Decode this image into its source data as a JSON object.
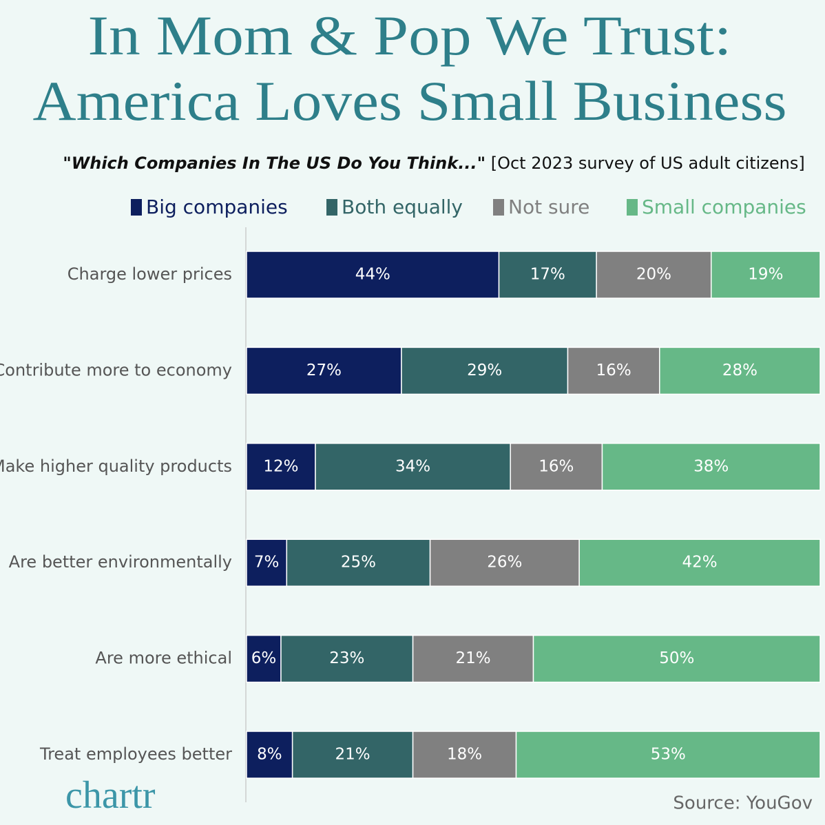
{
  "chart_data": {
    "type": "stacked-bar-horizontal",
    "title": [
      "In Mom & Pop We Trust:",
      "America Loves Small Business"
    ],
    "subtitle": "\"Which Companies In The US Do You Think...\"",
    "subtitle_note": "[Oct 2023 survey of US adult citizens]",
    "source": "Source: YouGov",
    "brand": "chartr",
    "categories": [
      "Charge lower prices",
      "Contribute more to economy",
      "Make higher quality products",
      "Are better environmentally",
      "Are more ethical",
      "Treat employees better"
    ],
    "xlim": [
      0,
      100
    ],
    "series": [
      {
        "name": "Big companies",
        "color": "#0d1f5e",
        "values": [
          44,
          27,
          12,
          7,
          6,
          8
        ],
        "value_labels": [
          "44%",
          "27%",
          "12%",
          "7%",
          "6%",
          "8%"
        ]
      },
      {
        "name": "Both equally",
        "color": "#336567",
        "values": [
          17,
          29,
          34,
          25,
          23,
          21
        ],
        "value_labels": [
          "17%",
          "29%",
          "34%",
          "25%",
          "23%",
          "21%"
        ]
      },
      {
        "name": "Not sure",
        "color": "#808080",
        "values": [
          20,
          16,
          16,
          26,
          21,
          18
        ],
        "value_labels": [
          "20%",
          "16%",
          "16%",
          "26%",
          "21%",
          "18%"
        ]
      },
      {
        "name": "Small companies",
        "color": "#66b887",
        "values": [
          19,
          28,
          38,
          42,
          50,
          53
        ],
        "value_labels": [
          "19%",
          "28%",
          "38%",
          "42%",
          "50%",
          "53%"
        ]
      }
    ]
  }
}
